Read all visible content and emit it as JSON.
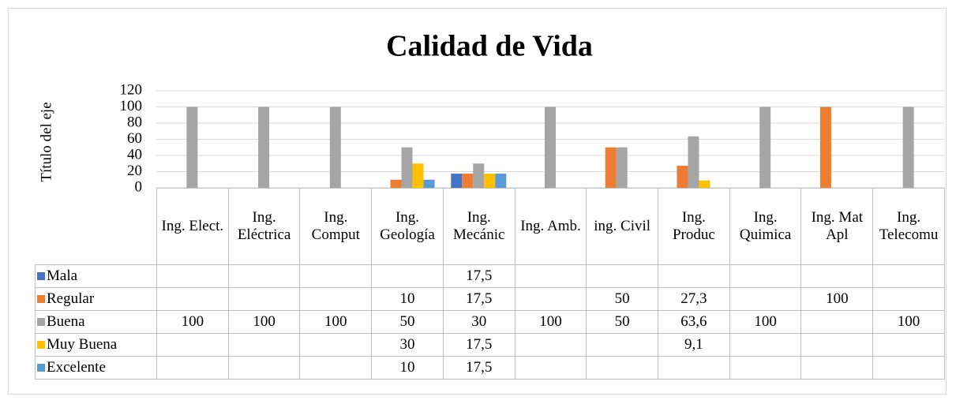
{
  "chart_data": {
    "type": "bar",
    "title": "Calidad de Vida",
    "y_label": "Título del eje",
    "categories": [
      "Ing. Elect.",
      "Ing. Eléctrica",
      "Ing. Comput",
      "Ing. Geología",
      "Ing. Mecánic",
      "Ing. Amb.",
      "ing. Civil",
      "Ing. Produc",
      "Ing. Quimica",
      "Ing. Mat Apl",
      "Ing. Telecomu"
    ],
    "series": [
      {
        "name": "Mala",
        "color": "#4472c4",
        "values": [
          null,
          null,
          null,
          null,
          17.5,
          null,
          null,
          null,
          null,
          null,
          null
        ],
        "value_labels": [
          null,
          null,
          null,
          null,
          "17,5",
          null,
          null,
          null,
          null,
          null,
          null
        ]
      },
      {
        "name": "Regular",
        "color": "#ed7d31",
        "values": [
          null,
          null,
          null,
          10,
          17.5,
          null,
          50,
          27.3,
          null,
          100,
          null
        ],
        "value_labels": [
          null,
          null,
          null,
          "10",
          "17,5",
          null,
          "50",
          "27,3",
          null,
          "100",
          null
        ]
      },
      {
        "name": "Buena",
        "color": "#a5a5a5",
        "values": [
          100,
          100,
          100,
          50,
          30,
          100,
          50,
          63.6,
          100,
          null,
          100
        ],
        "value_labels": [
          "100",
          "100",
          "100",
          "50",
          "30",
          "100",
          "50",
          "63,6",
          "100",
          null,
          "100"
        ]
      },
      {
        "name": "Muy Buena",
        "color": "#ffc000",
        "values": [
          null,
          null,
          null,
          30,
          17.5,
          null,
          null,
          9.1,
          null,
          null,
          null
        ],
        "value_labels": [
          null,
          null,
          null,
          "30",
          "17,5",
          null,
          null,
          "9,1",
          null,
          null,
          null
        ]
      },
      {
        "name": "Excelente",
        "color": "#5b9bd5",
        "values": [
          null,
          null,
          null,
          10,
          17.5,
          null,
          null,
          null,
          null,
          null,
          null
        ],
        "value_labels": [
          null,
          null,
          null,
          "10",
          "17,5",
          null,
          null,
          null,
          null,
          null,
          null
        ]
      }
    ],
    "ylim": [
      0,
      120
    ],
    "yticks": [
      0,
      20,
      40,
      60,
      80,
      100,
      120
    ],
    "grid": true
  }
}
